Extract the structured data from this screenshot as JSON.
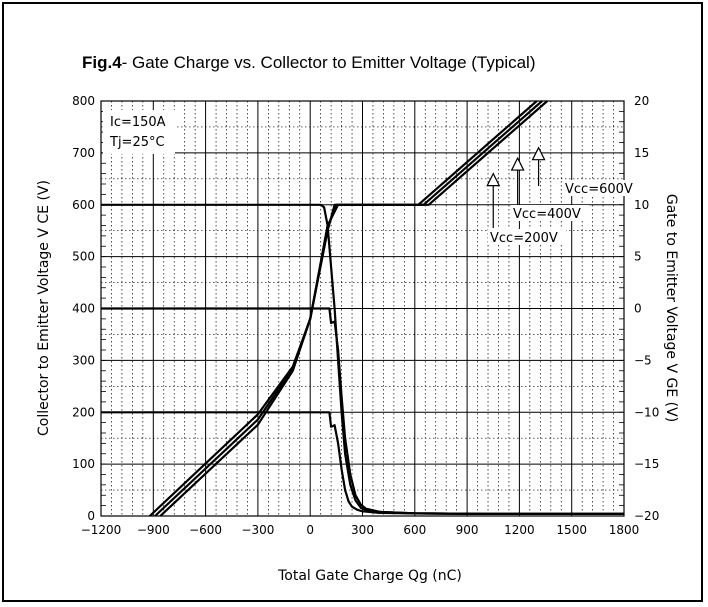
{
  "chart_data": {
    "type": "line",
    "title_bold": "Fig.4",
    "title_rest": "- Gate Charge vs. Collector to Emitter Voltage (Typical)",
    "xlabel": "Total Gate Charge Qg (nC)",
    "ylabel_left": "Collector to Emitter Voltage V CE (V)",
    "ylabel_right": "Gate to Emitter Voltage V GE (V)",
    "xlim": [
      -1200,
      1800
    ],
    "ylim_left": [
      0,
      800
    ],
    "ylim_right": [
      -20,
      20
    ],
    "x_ticks": [
      -1200,
      -900,
      -600,
      -300,
      0,
      300,
      600,
      900,
      1200,
      1500,
      1800
    ],
    "y_left_ticks": [
      0,
      100,
      200,
      300,
      400,
      500,
      600,
      700,
      800
    ],
    "y_right_ticks": [
      -20,
      -15,
      -10,
      -5,
      0,
      5,
      10,
      15,
      20
    ],
    "grid": true,
    "conditions": [
      "Ic=150A",
      "Tj=25°C"
    ],
    "series": [
      {
        "name": "Vcc=200V",
        "axis": "left",
        "x": [
          -1200,
          100,
          110,
          120,
          140,
          160,
          180,
          200,
          220,
          240,
          270,
          300,
          400,
          600,
          1000,
          1400,
          1800
        ],
        "y": [
          200,
          200,
          200,
          172,
          175,
          140,
          90,
          50,
          28,
          18,
          12,
          9,
          6,
          5,
          4,
          4,
          4
        ]
      },
      {
        "name": "Vcc=400V",
        "axis": "left",
        "x": [
          -1200,
          100,
          110,
          120,
          140,
          160,
          180,
          200,
          230,
          260,
          290,
          320,
          400,
          600,
          1000,
          1400,
          1800
        ],
        "y": [
          400,
          400,
          400,
          372,
          375,
          320,
          230,
          150,
          80,
          40,
          22,
          14,
          8,
          5,
          4,
          4,
          4
        ]
      },
      {
        "name": "Vcc=600V",
        "axis": "left",
        "x": [
          -1200,
          60,
          80,
          100,
          120,
          140,
          160,
          180,
          200,
          230,
          260,
          290,
          330,
          400,
          600,
          1000,
          1400,
          1800
        ],
        "y": [
          600,
          600,
          595,
          560,
          480,
          400,
          300,
          200,
          120,
          60,
          30,
          16,
          10,
          8,
          5,
          4,
          4,
          4
        ]
      },
      {
        "name": "VGE (Vcc=200V)",
        "axis": "right",
        "x": [
          -920,
          -300,
          -100,
          0,
          100,
          140,
          620,
          1300
        ],
        "y": [
          -20,
          -10.2,
          -5.6,
          -1,
          7.5,
          10,
          10,
          20
        ]
      },
      {
        "name": "VGE (Vcc=400V)",
        "axis": "right",
        "x": [
          -890,
          -300,
          -100,
          0,
          100,
          150,
          650,
          1330
        ],
        "y": [
          -20,
          -10.7,
          -5.8,
          -1,
          7.8,
          10,
          10,
          20
        ]
      },
      {
        "name": "VGE (Vcc=600V)",
        "axis": "right",
        "x": [
          -860,
          -300,
          -100,
          0,
          100,
          160,
          680,
          1360
        ],
        "y": [
          -20,
          -11.2,
          -6,
          -1,
          8,
          10,
          10,
          20
        ]
      }
    ],
    "annotations": [
      {
        "label": "Vcc=600V",
        "arrow_at": [
          1310,
          15.5
        ]
      },
      {
        "label": "Vcc=400V",
        "arrow_at": [
          1190,
          14.5
        ]
      },
      {
        "label": "Vcc=200V",
        "arrow_at": [
          1050,
          13.0
        ]
      }
    ]
  }
}
